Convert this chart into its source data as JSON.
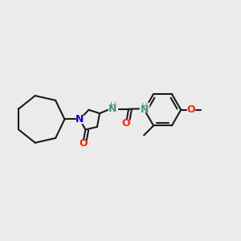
{
  "background_color": "#ebebeb",
  "bond_color": "#1a1a1a",
  "nitrogen_color": "#0000cd",
  "oxygen_color": "#ff2200",
  "nh_color": "#4a9090",
  "bond_width": 1.5,
  "figsize": [
    3.0,
    3.0
  ],
  "dpi": 100,
  "xlim": [
    0.03,
    0.97
  ],
  "ylim": [
    0.28,
    0.78
  ]
}
